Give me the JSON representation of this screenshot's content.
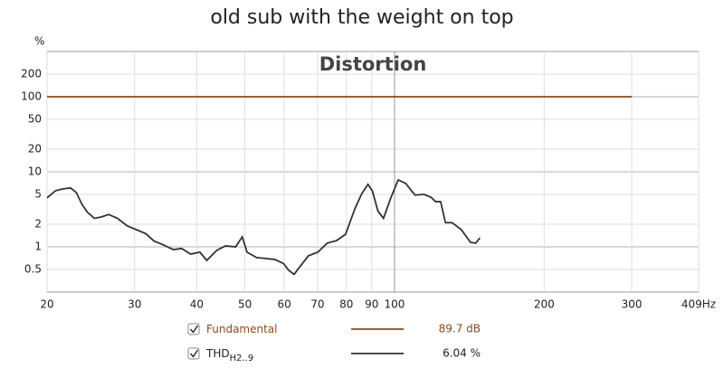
{
  "chart_data": {
    "type": "line",
    "title": "old sub with the weight on top",
    "subtitle": "Distortion",
    "y_unit": "%",
    "xscale": "log",
    "yscale": "log",
    "grid": true,
    "xlim": [
      20,
      409
    ],
    "xticks": [
      20,
      30,
      40,
      50,
      60,
      70,
      80,
      90,
      100,
      200,
      300,
      {
        "value": 409,
        "label": "409Hz"
      }
    ],
    "ylim": [
      0.25,
      400
    ],
    "yticks": [
      0.5,
      1,
      2,
      5,
      10,
      20,
      50,
      100,
      200
    ],
    "series": [
      {
        "name": "Fundamental",
        "color": "#8b4a1c",
        "readout": "89.7 dB",
        "x": [
          20,
          300
        ],
        "values": [
          100,
          100
        ]
      },
      {
        "name": "THD",
        "name_subscript": "H2..9",
        "color": "#333333",
        "readout": "6.04 %",
        "x": [
          20,
          20.8,
          21.5,
          22.3,
          22.9,
          23.5,
          24.1,
          24.9,
          25.7,
          26.6,
          27.7,
          29.0,
          30.2,
          31.6,
          32.8,
          34.3,
          35.9,
          37.3,
          38.9,
          40.6,
          41.9,
          43.9,
          45.7,
          47.9,
          49.4,
          50.5,
          52.8,
          55.1,
          57.4,
          59.8,
          61.2,
          62.8,
          64.3,
          67.1,
          70.1,
          73.2,
          76.4,
          79.7,
          83.2,
          85.9,
          88.4,
          90.2,
          92.6,
          95.0,
          98.3,
          101.7,
          105.3,
          109.9,
          114.7,
          118.3,
          121.0,
          123.8,
          126.6,
          130.5,
          136.2,
          142.1,
          145.6,
          148.5
        ],
        "values": [
          4.5,
          5.6,
          5.9,
          6.1,
          5.3,
          3.7,
          2.9,
          2.4,
          2.5,
          2.7,
          2.4,
          1.9,
          1.7,
          1.5,
          1.2,
          1.06,
          0.92,
          0.95,
          0.8,
          0.85,
          0.66,
          0.9,
          1.03,
          1.0,
          1.36,
          0.85,
          0.72,
          0.7,
          0.68,
          0.6,
          0.49,
          0.43,
          0.53,
          0.76,
          0.85,
          1.12,
          1.21,
          1.47,
          3.2,
          5.1,
          6.8,
          5.6,
          3.0,
          2.4,
          4.5,
          7.8,
          7.0,
          4.9,
          5.0,
          4.6,
          4.0,
          4.0,
          2.1,
          2.1,
          1.7,
          1.15,
          1.12,
          1.32
        ]
      }
    ]
  }
}
